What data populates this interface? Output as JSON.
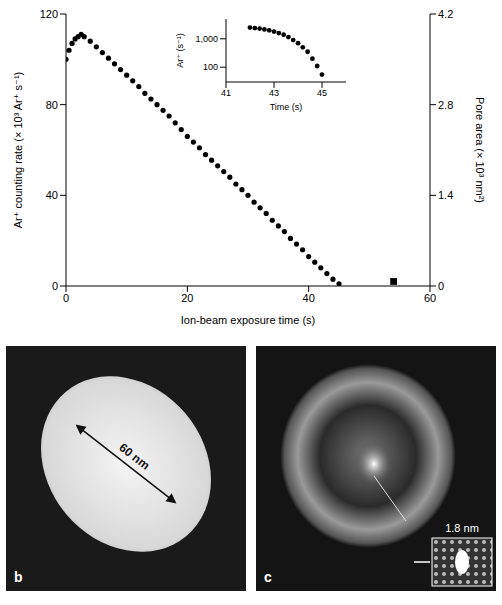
{
  "chart_data": [
    {
      "type": "scatter",
      "x_label": "Ion-beam exposure time (s)",
      "y_label": "Ar⁺ counting rate (× 10³ Ar⁺ s⁻¹)",
      "y2_label": "Pore area (× 10³ nm²)",
      "xlim": [
        0,
        60
      ],
      "xticks": [
        0,
        20,
        40,
        60
      ],
      "ylim": [
        0,
        120
      ],
      "yticks": [
        0,
        40,
        80,
        120
      ],
      "y2lim": [
        0,
        4.2
      ],
      "y2ticks": [
        0,
        1.4,
        2.8,
        4.2
      ],
      "color": "#000000",
      "series": [
        {
          "marker": "circle",
          "x": [
            0,
            0.5,
            1,
            1.5,
            2,
            2.5,
            3,
            4,
            5,
            6,
            7,
            8,
            9,
            10,
            11,
            12,
            13,
            14,
            15,
            16,
            17,
            18,
            19,
            20,
            21,
            22,
            23,
            24,
            25,
            26,
            27,
            28,
            29,
            30,
            31,
            32,
            33,
            34,
            35,
            36,
            37,
            38,
            39,
            40,
            41,
            42,
            43,
            44,
            45
          ],
          "values": [
            100,
            104,
            107,
            109,
            110,
            111,
            110,
            108,
            105.5,
            103,
            100.5,
            98,
            95.5,
            93,
            90.5,
            88,
            85,
            82.5,
            80,
            77.5,
            75,
            72,
            69,
            66,
            63.5,
            61,
            58,
            55.5,
            53,
            50.5,
            48,
            45,
            42.5,
            40,
            37,
            34.5,
            32,
            29,
            26.5,
            24,
            21,
            18.5,
            16,
            13,
            10.5,
            8,
            5.5,
            3,
            1
          ]
        },
        {
          "marker": "square",
          "x": [
            54
          ],
          "values": [
            2
          ]
        }
      ]
    },
    {
      "type": "scatter",
      "log": "y",
      "x_label": "Time (s)",
      "y_label": "Ar⁺ (s⁻¹)",
      "xlim": [
        41,
        46
      ],
      "xticks": [
        41,
        43,
        45
      ],
      "ylim": [
        30,
        5000
      ],
      "yticks": [
        100,
        {
          "value": 1000,
          "label": "1,000"
        }
      ],
      "color": "#000000",
      "series": [
        {
          "marker": "circle",
          "x": [
            42,
            42.2,
            42.4,
            42.6,
            42.8,
            43,
            43.2,
            43.4,
            43.6,
            43.8,
            44,
            44.2,
            44.4,
            44.6,
            44.8,
            45
          ],
          "values": [
            2500,
            2400,
            2300,
            2150,
            2000,
            1800,
            1600,
            1400,
            1150,
            900,
            700,
            500,
            350,
            200,
            110,
            55
          ]
        }
      ]
    }
  ],
  "panels": [
    {
      "label": "b",
      "scale_label": "60 nm"
    },
    {
      "label": "c",
      "scale_label": "1.8 nm"
    }
  ]
}
